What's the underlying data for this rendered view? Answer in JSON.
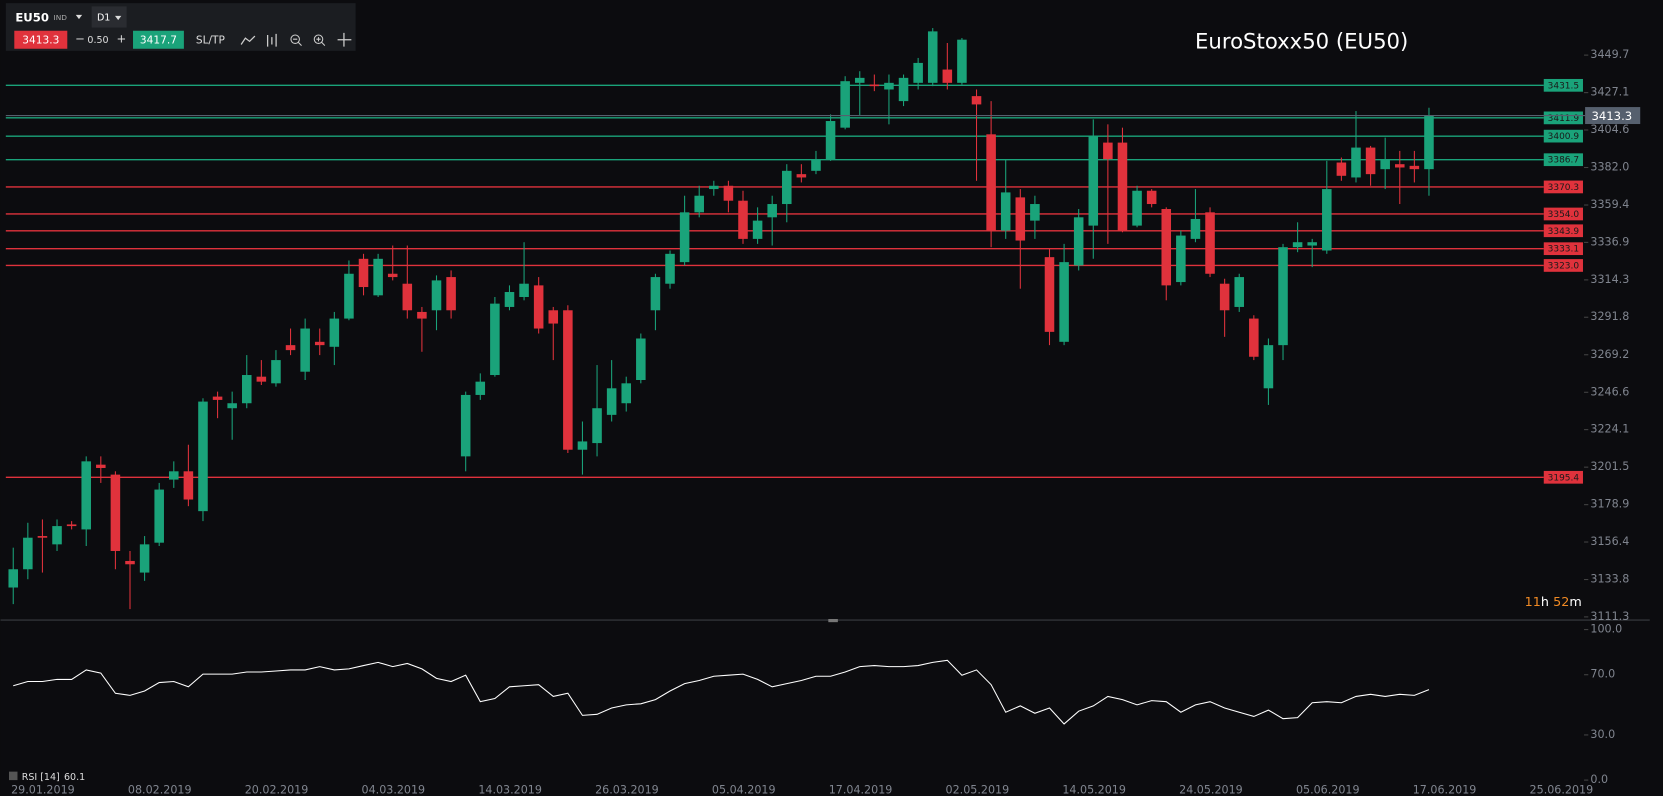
{
  "toolbar": {
    "symbol": "EU50",
    "instrument_type": "IND",
    "timeframe": "D1",
    "bid": 3413.3,
    "minus": "−",
    "spread": "0.50",
    "plus": "+",
    "ask": 3417.7,
    "sltp": "SL/TP"
  },
  "chart_data": [
    {
      "type": "candlestick",
      "title": "EuroStoxx50 (EU50)",
      "up_color": "#1aa37a",
      "down_color": "#e0323c",
      "open": [
        3129,
        3140,
        3160,
        3155,
        3167,
        3164,
        3203,
        3197,
        3145,
        3138,
        3156,
        3194,
        3199,
        3175,
        3244,
        3237,
        3240,
        3256,
        3252,
        3275,
        3259,
        3277,
        3274,
        3291,
        3327,
        3305,
        3318,
        3312,
        3295,
        3296,
        3316,
        3208,
        3245,
        3257,
        3298,
        3304,
        3311,
        3296,
        3296,
        3212,
        3216,
        3233,
        3240,
        3254,
        3296,
        3312,
        3325,
        3355,
        3369,
        3371,
        3362,
        3339,
        3352,
        3360,
        3378,
        3380,
        3387,
        3406,
        3433,
        3432,
        3429,
        3422,
        3433,
        3433,
        3441,
        3433,
        3425,
        3402,
        3344,
        3364,
        3350,
        3328,
        3277,
        3323,
        3347,
        3397,
        3397,
        3347,
        3368,
        3357,
        3313,
        3339,
        3355,
        3312,
        3298,
        3291,
        3249,
        3275,
        3334,
        3335,
        3332,
        3385,
        3376,
        3394,
        3381,
        3384,
        3383,
        3381
      ],
      "high": [
        3153,
        3168,
        3170,
        3170,
        3169,
        3208,
        3208,
        3199,
        3151,
        3160,
        3192,
        3205,
        3215,
        3243,
        3247,
        3247,
        3269,
        3266,
        3272,
        3285,
        3291,
        3285,
        3295,
        3326,
        3330,
        3330,
        3335,
        3335,
        3298,
        3317,
        3320,
        3247,
        3258,
        3304,
        3311,
        3337,
        3316,
        3298,
        3299,
        3229,
        3263,
        3266,
        3256,
        3282,
        3318,
        3332,
        3365,
        3371,
        3374,
        3374,
        3368,
        3358,
        3365,
        3384,
        3384,
        3392,
        3414,
        3437,
        3440,
        3438,
        3438,
        3438,
        3448,
        3466,
        3457,
        3460,
        3429,
        3422,
        3387,
        3369,
        3365,
        3333,
        3336,
        3357,
        3411,
        3408,
        3406,
        3371,
        3369,
        3358,
        3344,
        3369,
        3358,
        3315,
        3318,
        3293,
        3279,
        3336,
        3349,
        3339,
        3386,
        3388,
        3416,
        3395,
        3400,
        3392,
        3392,
        3418
      ],
      "low": [
        3119,
        3134,
        3138,
        3151,
        3164,
        3154,
        3192,
        3140,
        3116,
        3133,
        3154,
        3189,
        3178,
        3169,
        3231,
        3218,
        3237,
        3251,
        3250,
        3269,
        3254,
        3269,
        3263,
        3290,
        3305,
        3304,
        3314,
        3291,
        3271,
        3284,
        3291,
        3199,
        3242,
        3256,
        3296,
        3302,
        3282,
        3266,
        3210,
        3197,
        3208,
        3229,
        3235,
        3252,
        3284,
        3309,
        3323,
        3352,
        3365,
        3355,
        3336,
        3336,
        3335,
        3349,
        3373,
        3378,
        3386,
        3405,
        3413,
        3428,
        3408,
        3419,
        3429,
        3431,
        3429,
        3432,
        3374,
        3334,
        3339,
        3309,
        3339,
        3275,
        3275,
        3320,
        3327,
        3336,
        3343,
        3346,
        3358,
        3302,
        3311,
        3337,
        3316,
        3280,
        3295,
        3266,
        3239,
        3266,
        3331,
        3322,
        3330,
        3374,
        3373,
        3371,
        3369,
        3360,
        3373,
        3365
      ],
      "close": [
        3140,
        3159,
        3159,
        3166,
        3166,
        3205,
        3201,
        3151,
        3143,
        3155,
        3188,
        3199,
        3182,
        3241,
        3242,
        3240,
        3257,
        3253,
        3266,
        3272,
        3285,
        3275,
        3291,
        3318,
        3310,
        3327,
        3316,
        3296,
        3291,
        3314,
        3296,
        3245,
        3253,
        3300,
        3307,
        3312,
        3285,
        3288,
        3212,
        3217,
        3237,
        3249,
        3252,
        3279,
        3316,
        3330,
        3355,
        3365,
        3371,
        3362,
        3339,
        3350,
        3360,
        3380,
        3376,
        3387,
        3410,
        3434,
        3436,
        3431,
        3433,
        3436,
        3445,
        3464,
        3433,
        3459,
        3420,
        3344,
        3367,
        3338,
        3360,
        3283,
        3325,
        3352,
        3401,
        3387,
        3344,
        3368,
        3360,
        3311,
        3341,
        3351,
        3318,
        3296,
        3316,
        3268,
        3275,
        3334,
        3337,
        3337,
        3369,
        3377,
        3394,
        3378,
        3387,
        3382,
        3381,
        3413.3
      ],
      "levels": [
        {
          "value": 3431.5,
          "color": "#1aa37a"
        },
        {
          "value": 3411.9,
          "color": "#1aa37a"
        },
        {
          "value": 3400.9,
          "color": "#1aa37a"
        },
        {
          "value": 3386.7,
          "color": "#1aa37a"
        },
        {
          "value": 3370.3,
          "color": "#e0323c"
        },
        {
          "value": 3354.0,
          "label": "3354.0",
          "color": "#e0323c"
        },
        {
          "value": 3343.9,
          "color": "#e0323c"
        },
        {
          "value": 3333.1,
          "color": "#e0323c"
        },
        {
          "value": 3323.0,
          "label": "3323.0",
          "color": "#e0323c"
        },
        {
          "value": 3195.4,
          "color": "#e0323c"
        }
      ],
      "ylim": [
        3109.4,
        3482.9
      ],
      "yticks": [
        3449.7,
        3427.1,
        3404.6,
        {
          "value": 3382,
          "label": "3382.0"
        },
        3359.4,
        3336.9,
        3314.3,
        3291.8,
        3269.2,
        3246.6,
        3224.1,
        3201.5,
        3178.9,
        3156.4,
        3133.8,
        3111.3
      ],
      "x_labels": [
        "29.01.2019",
        "08.02.2019",
        "20.02.2019",
        "04.03.2019",
        "14.03.2019",
        "26.03.2019",
        "05.04.2019",
        "17.04.2019",
        "02.05.2019",
        "14.05.2019",
        "24.05.2019",
        "05.06.2019",
        "17.06.2019",
        "25.06.2019"
      ],
      "countdown": {
        "hours": 11,
        "hours_unit": "h",
        "minutes": 52,
        "minutes_unit": "m"
      }
    },
    {
      "type": "line",
      "name": "RSI [14]",
      "color": "#ffffff",
      "values": [
        62.7,
        65.5,
        65.5,
        66.9,
        66.9,
        73.2,
        71.1,
        57.7,
        56.3,
        59.2,
        64.8,
        65.5,
        62.0,
        70.4,
        70.4,
        70.4,
        71.8,
        71.8,
        72.5,
        73.2,
        73.2,
        75.4,
        73.2,
        73.9,
        76.1,
        78.2,
        75.4,
        77.5,
        73.9,
        67.6,
        65.5,
        69.7,
        52.1,
        54.2,
        62.0,
        62.7,
        63.4,
        55.6,
        57.7,
        43.0,
        43.7,
        47.9,
        50.0,
        50.7,
        53.5,
        59.2,
        64.1,
        66.2,
        69.0,
        69.7,
        70.4,
        66.9,
        62.0,
        64.1,
        66.2,
        69.0,
        69.0,
        71.8,
        75.4,
        76.1,
        75.4,
        75.4,
        76.1,
        78.2,
        79.6,
        69.7,
        73.2,
        63.4,
        45.1,
        49.3,
        44.4,
        47.9,
        37.3,
        45.8,
        49.3,
        55.6,
        53.5,
        50.0,
        52.8,
        52.1,
        45.1,
        50.0,
        52.1,
        47.9,
        45.1,
        42.3,
        46.5,
        40.8,
        41.5,
        51.4,
        52.1,
        51.4,
        55.6,
        57.0,
        55.6,
        57.0,
        56.3,
        60.1
      ],
      "ylim": [
        0,
        100
      ],
      "yticks": [
        {
          "value": 100,
          "label": "100.0"
        },
        {
          "value": 70,
          "label": "70.0"
        },
        {
          "value": 30,
          "label": "30.0"
        },
        {
          "value": 0,
          "label": "0.0"
        }
      ]
    }
  ]
}
